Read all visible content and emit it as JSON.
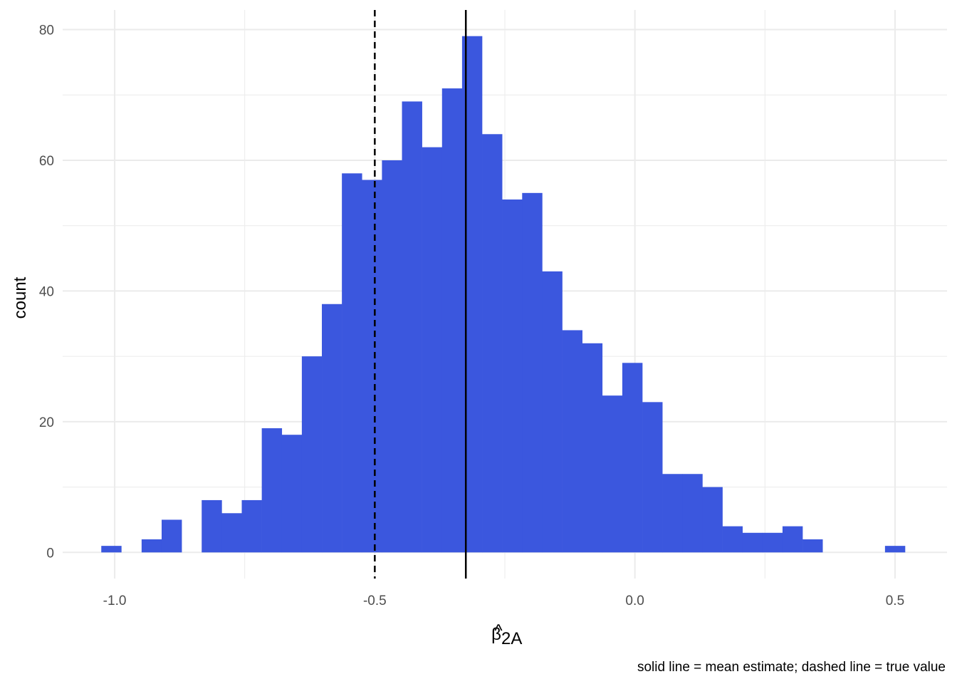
{
  "chart_data": {
    "type": "bar",
    "subtype": "histogram",
    "bin_width": 0.0385,
    "bins": [
      {
        "x": -1.0065,
        "count": 1
      },
      {
        "x": -0.929,
        "count": 2
      },
      {
        "x": -0.8905,
        "count": 5
      },
      {
        "x": -0.8135,
        "count": 8
      },
      {
        "x": -0.775,
        "count": 6
      },
      {
        "x": -0.7365,
        "count": 8
      },
      {
        "x": -0.698,
        "count": 19
      },
      {
        "x": -0.6595,
        "count": 18
      },
      {
        "x": -0.621,
        "count": 30
      },
      {
        "x": -0.5825,
        "count": 38
      },
      {
        "x": -0.544,
        "count": 58
      },
      {
        "x": -0.5055,
        "count": 57
      },
      {
        "x": -0.467,
        "count": 60
      },
      {
        "x": -0.4285,
        "count": 69
      },
      {
        "x": -0.39,
        "count": 62
      },
      {
        "x": -0.3515,
        "count": 71
      },
      {
        "x": -0.313,
        "count": 79
      },
      {
        "x": -0.2745,
        "count": 64
      },
      {
        "x": -0.236,
        "count": 54
      },
      {
        "x": -0.1975,
        "count": 55
      },
      {
        "x": -0.159,
        "count": 43
      },
      {
        "x": -0.1205,
        "count": 34
      },
      {
        "x": -0.082,
        "count": 32
      },
      {
        "x": -0.0435,
        "count": 24
      },
      {
        "x": -0.005,
        "count": 29
      },
      {
        "x": 0.0335,
        "count": 23
      },
      {
        "x": 0.072,
        "count": 12
      },
      {
        "x": 0.1105,
        "count": 12
      },
      {
        "x": 0.149,
        "count": 10
      },
      {
        "x": 0.1875,
        "count": 4
      },
      {
        "x": 0.226,
        "count": 3
      },
      {
        "x": 0.2645,
        "count": 3
      },
      {
        "x": 0.303,
        "count": 4
      },
      {
        "x": 0.3415,
        "count": 2
      },
      {
        "x": 0.5,
        "count": 1
      }
    ],
    "mean_estimate": -0.325,
    "true_value": -0.5,
    "xlim": [
      -1.1,
      0.6
    ],
    "ylim": [
      -4,
      83
    ],
    "x_ticks": [
      "-1.0",
      "-0.5",
      "0.0",
      "0.5"
    ],
    "y_ticks": [
      "0",
      "20",
      "40",
      "60",
      "80"
    ],
    "xlabel_base": "β",
    "xlabel_hat": "^",
    "xlabel_sub": "2A",
    "ylabel": "count",
    "caption": "solid line = mean estimate; dashed line = true value",
    "colors": {
      "bar": "#3b57de",
      "grid": "#ebebeb",
      "mean_line": "#000000",
      "true_line": "#000000"
    },
    "grid": true,
    "legend": "none"
  }
}
